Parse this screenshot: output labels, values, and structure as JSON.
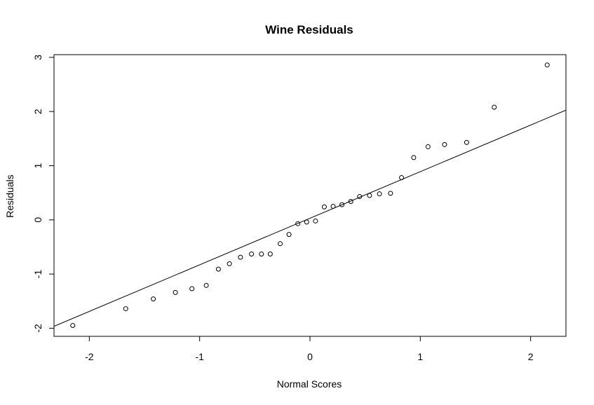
{
  "chart_data": {
    "type": "scatter",
    "title": "Wine Residuals",
    "xlabel": "Normal Scores",
    "ylabel": "Residuals",
    "xlim": [
      -2.32,
      2.32
    ],
    "ylim": [
      -2.15,
      3.05
    ],
    "xticks": [
      -2,
      -1,
      0,
      1,
      2
    ],
    "xtick_labels": [
      "-2",
      "-1",
      "0",
      "1",
      "2"
    ],
    "yticks": [
      -2,
      -1,
      0,
      1,
      2,
      3
    ],
    "ytick_labels": [
      "-2",
      "-1",
      "0",
      "1",
      "2",
      "3"
    ],
    "grid": false,
    "legend": "none",
    "points": {
      "x": [
        -2.15,
        -1.67,
        -1.42,
        -1.22,
        -1.07,
        -0.94,
        -0.83,
        -0.73,
        -0.63,
        -0.53,
        -0.44,
        -0.36,
        -0.27,
        -0.19,
        -0.11,
        -0.03,
        0.05,
        0.13,
        0.21,
        0.29,
        0.37,
        0.45,
        0.54,
        0.63,
        0.73,
        0.83,
        0.94,
        1.07,
        1.22,
        1.42,
        1.67,
        2.15
      ],
      "y": [
        -1.95,
        -1.64,
        -1.46,
        -1.34,
        -1.27,
        -1.21,
        -0.91,
        -0.81,
        -0.69,
        -0.63,
        -0.63,
        -0.63,
        -0.44,
        -0.27,
        -0.07,
        -0.04,
        -0.02,
        0.24,
        0.25,
        0.28,
        0.34,
        0.43,
        0.45,
        0.48,
        0.49,
        0.78,
        1.15,
        1.35,
        1.39,
        1.43,
        2.08,
        2.86
      ]
    },
    "reference_line": {
      "intercept": 0.03,
      "slope": 0.86
    }
  }
}
